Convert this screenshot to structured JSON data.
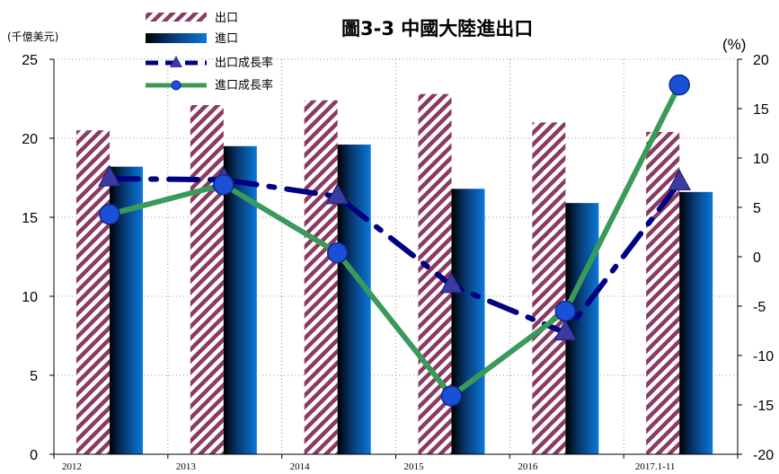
{
  "chart_data": {
    "type": "bar",
    "title": "圖3-3 中國大陸進出口",
    "ylabel": "(千億美元)",
    "y2label": "(%)",
    "categories": [
      "2012",
      "2013",
      "2014",
      "2015",
      "2016",
      "2017.1-11"
    ],
    "ylim": [
      0,
      25
    ],
    "y2lim": [
      -20,
      20
    ],
    "yticks": [
      "0",
      "5",
      "10",
      "15",
      "20",
      "25"
    ],
    "y2ticks": [
      "-20",
      "-15",
      "-10",
      "-5",
      "0",
      "5",
      "10",
      "15",
      "20"
    ],
    "series": [
      {
        "name": "出口",
        "kind": "bar",
        "axis": "left",
        "values": [
          20.5,
          22.1,
          22.4,
          22.8,
          21.0,
          20.4
        ],
        "color": "#8b3a62"
      },
      {
        "name": "進口",
        "kind": "bar",
        "axis": "left",
        "values": [
          18.2,
          19.5,
          19.6,
          16.8,
          15.9,
          16.6
        ],
        "color": "#0a6fc7"
      },
      {
        "name": "出口成長率",
        "kind": "line",
        "axis": "right",
        "values": [
          7.9,
          7.8,
          6.1,
          -2.9,
          -7.7,
          7.5
        ],
        "color": "#000080"
      },
      {
        "name": "進口成長率",
        "kind": "line",
        "axis": "right",
        "values": [
          4.3,
          7.3,
          0.4,
          -14.1,
          -5.5,
          17.4
        ],
        "color": "#3a9a5a"
      }
    ],
    "grid": true,
    "legend_position": "top-left"
  }
}
